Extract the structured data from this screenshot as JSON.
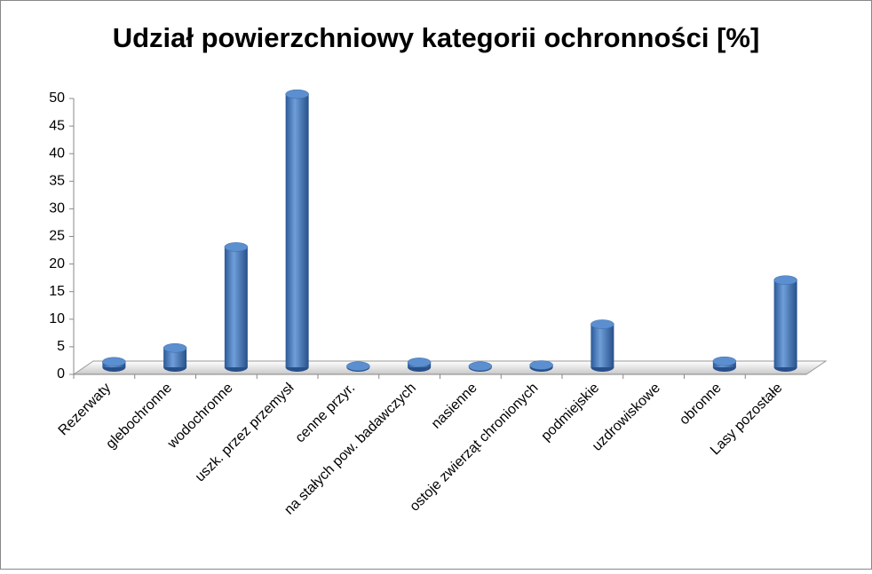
{
  "chart_data": {
    "type": "bar3d",
    "title": "Udział powierzchniowy kategorii ochronności [%]",
    "categories": [
      "Rezerwaty",
      "glebochronne",
      "wodochronne",
      "uszk. przez przemysł",
      "cenne przyr.",
      "na stałych pow. badawczych",
      "nasienne",
      "ostoje zwierząt chronionych",
      "podmiejskie",
      "uzdrowiskowe",
      "obronne",
      "Lasy pozostałe"
    ],
    "values": [
      1.0,
      3.5,
      21.8,
      49.5,
      0.2,
      0.9,
      0.2,
      0.4,
      7.8,
      0,
      1.1,
      15.8
    ],
    "color": "#4a7ebf",
    "ylim": [
      0,
      50
    ],
    "yticks": [
      0,
      5,
      10,
      15,
      20,
      25,
      30,
      35,
      40,
      45,
      50
    ],
    "grid": false
  }
}
